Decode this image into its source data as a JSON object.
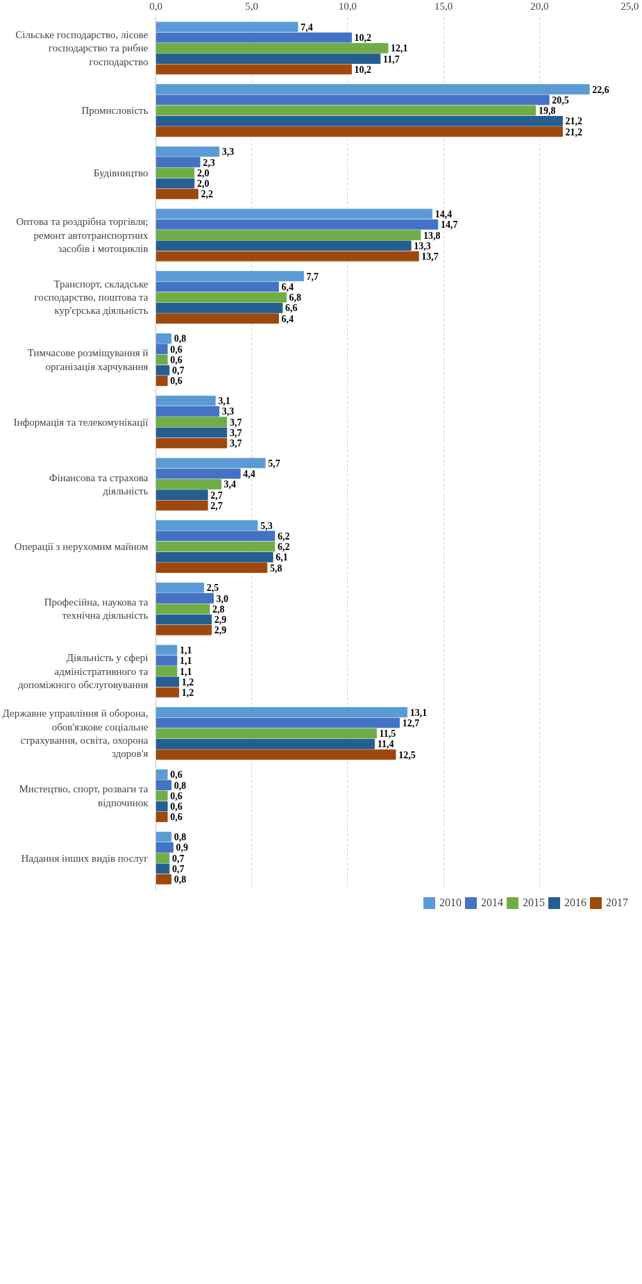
{
  "chart_data": {
    "type": "bar",
    "orientation": "horizontal",
    "categories": [
      "Сільське господарство, лісове господарство та рибне господарство",
      "Промисловість",
      "Будівництво",
      "Оптова та роздрібна торгівля; ремонт автотранспортних засобів і мотоциклів",
      "Транспорт, складське господарство, поштова та кур'єрська діяльність",
      "Тимчасове розміщування й організація харчування",
      "Інформація та телекомунікації",
      "Фінансова та страхова діяльність",
      "Операції з нерухомим майном",
      "Професійна, наукова та технічна діяльність",
      "Діяльність у сфері адміністративного та допоміжного обслуговування",
      "Державне управління й оборона, обов'язкове соціальне страхування, освіта, охорона здоров'я",
      "Мистецтво, спорт, розваги та відпочинок",
      "Надання інших видів послуг"
    ],
    "series": [
      {
        "name": "2010",
        "color": "#5b9bd5",
        "values": [
          7.4,
          22.6,
          3.3,
          14.4,
          7.7,
          0.8,
          3.1,
          5.7,
          5.3,
          2.5,
          1.1,
          13.1,
          0.6,
          0.8
        ],
        "value_labels": [
          "7,4",
          "22,6",
          "3,3",
          "14,4",
          "7,7",
          "0,8",
          "3,1",
          "5,7",
          "5,3",
          "2,5",
          "1,1",
          "13,1",
          "0,6",
          "0,8"
        ]
      },
      {
        "name": "2014",
        "color": "#4472c4",
        "values": [
          10.2,
          20.5,
          2.3,
          14.7,
          6.4,
          0.6,
          3.3,
          4.4,
          6.2,
          3.0,
          1.1,
          12.7,
          0.8,
          0.9
        ],
        "value_labels": [
          "10,2",
          "20,5",
          "2,3",
          "14,7",
          "6,4",
          "0,6",
          "3,3",
          "4,4",
          "6,2",
          "3,0",
          "1,1",
          "12,7",
          "0,8",
          "0,9"
        ]
      },
      {
        "name": "2015",
        "color": "#70ad47",
        "values": [
          12.1,
          19.8,
          2.0,
          13.8,
          6.8,
          0.6,
          3.7,
          3.4,
          6.2,
          2.8,
          1.1,
          11.5,
          0.6,
          0.7
        ],
        "value_labels": [
          "12,1",
          "19,8",
          "2,0",
          "13,8",
          "6,8",
          "0,6",
          "3,7",
          "3,4",
          "6,2",
          "2,8",
          "1,1",
          "11,5",
          "0,6",
          "0,7"
        ]
      },
      {
        "name": "2016",
        "color": "#255e91",
        "values": [
          11.7,
          21.2,
          2.0,
          13.3,
          6.6,
          0.7,
          3.7,
          2.7,
          6.1,
          2.9,
          1.2,
          11.4,
          0.6,
          0.7
        ],
        "value_labels": [
          "11,7",
          "21,2",
          "2,0",
          "13,3",
          "6,6",
          "0,7",
          "3,7",
          "2,7",
          "6,1",
          "2,9",
          "1,2",
          "11,4",
          "0,6",
          "0,7"
        ]
      },
      {
        "name": "2017",
        "color": "#9e480e",
        "values": [
          10.2,
          21.2,
          2.2,
          13.7,
          6.4,
          0.6,
          3.7,
          2.7,
          5.8,
          2.9,
          1.2,
          12.5,
          0.6,
          0.8
        ],
        "value_labels": [
          "10,2",
          "21,2",
          "2,2",
          "13,7",
          "6,4",
          "0,6",
          "3,7",
          "2,7",
          "5,8",
          "2,9",
          "1,2",
          "12,5",
          "0,6",
          "0,8"
        ]
      }
    ],
    "xlim": [
      0,
      25
    ],
    "xticks": [
      {
        "value": 0,
        "label": "0,0"
      },
      {
        "value": 5,
        "label": "5,0"
      },
      {
        "value": 10,
        "label": "10,0"
      },
      {
        "value": 15,
        "label": "15,0"
      },
      {
        "value": 20,
        "label": "20,0"
      },
      {
        "value": 25,
        "label": "25,0"
      }
    ],
    "grid": "x",
    "legend": "bottom"
  }
}
